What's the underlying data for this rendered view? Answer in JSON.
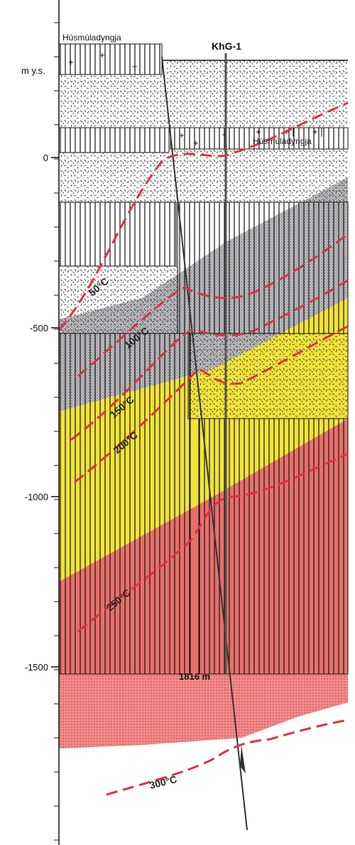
{
  "axis": {
    "unit": "m y.s.",
    "ticks": [
      "0",
      "-500",
      "-1000",
      "-1500"
    ]
  },
  "well": {
    "name": "KhG-1",
    "depth": "1816 m"
  },
  "formations": [
    "Húsmúladyngja",
    "Húsmúladyngja"
  ],
  "isotherms": [
    "50°C",
    "100°C",
    "150°C",
    "200°C",
    "250°C",
    "300°C"
  ]
}
